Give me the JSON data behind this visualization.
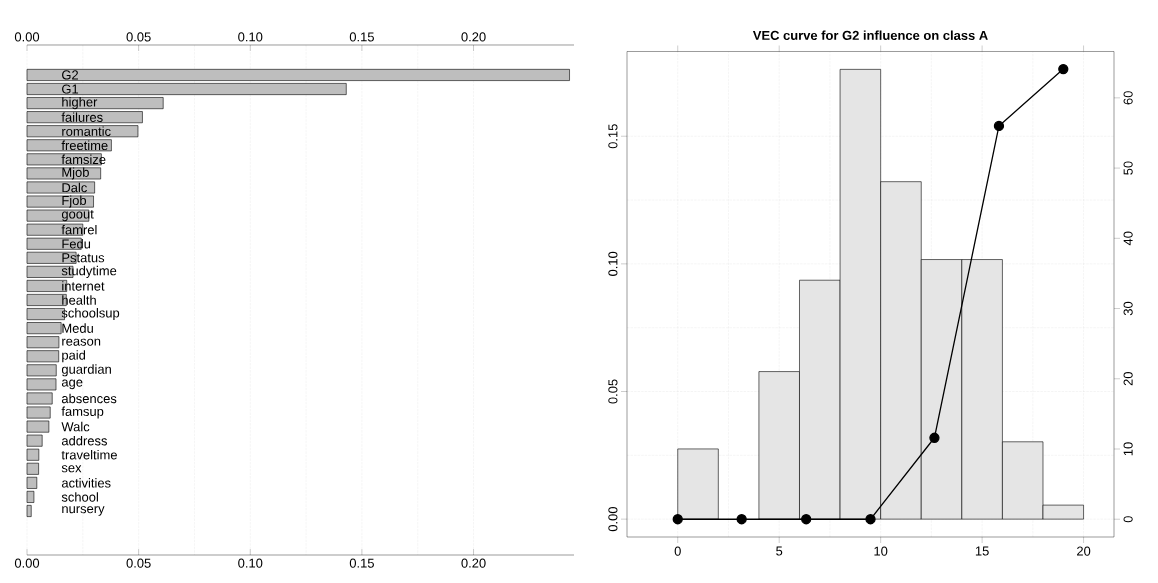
{
  "chart_data": [
    {
      "type": "bar",
      "orientation": "horizontal",
      "color": "#bebebe",
      "grid": true,
      "categories": [
        "G2",
        "G1",
        "higher",
        "failures",
        "romantic",
        "freetime",
        "famsize",
        "Mjob",
        "Dalc",
        "Fjob",
        "goout",
        "famrel",
        "Fedu",
        "Pstatus",
        "studytime",
        "internet",
        "health",
        "schoolsup",
        "Medu",
        "reason",
        "paid",
        "guardian",
        "age",
        "absences",
        "famsup",
        "Walc",
        "address",
        "traveltime",
        "sex",
        "activities",
        "school",
        "nursery"
      ],
      "values": [
        0.243,
        0.143,
        0.061,
        0.0517,
        0.0497,
        0.0378,
        0.0333,
        0.033,
        0.0303,
        0.0298,
        0.0277,
        0.025,
        0.0243,
        0.022,
        0.0206,
        0.0178,
        0.0176,
        0.0168,
        0.0153,
        0.0143,
        0.0142,
        0.0131,
        0.013,
        0.0113,
        0.0104,
        0.0098,
        0.0068,
        0.0053,
        0.0052,
        0.0044,
        0.0031,
        0.0019
      ],
      "xlim": [
        0,
        0.245
      ],
      "xticks": [
        {
          "value": 0,
          "label": "0.00"
        },
        {
          "value": 0.05,
          "label": "0.05"
        },
        {
          "value": 0.1,
          "label": "0.10"
        },
        {
          "value": 0.15,
          "label": "0.15"
        },
        {
          "value": 0.2,
          "label": "0.20"
        }
      ],
      "x2lim": [
        0,
        0.245
      ],
      "x2ticks": [
        {
          "value": 0,
          "label": "0.00"
        },
        {
          "value": 0.05,
          "label": "0.05"
        },
        {
          "value": 0.1,
          "label": "0.10"
        },
        {
          "value": 0.15,
          "label": "0.15"
        },
        {
          "value": 0.2,
          "label": "0.20"
        }
      ]
    },
    {
      "type": "histogram",
      "title": "VEC curve for G2 influence on class A",
      "grid": true,
      "bins": [
        0,
        2,
        4,
        6,
        8,
        10,
        12,
        14,
        16,
        18,
        20
      ],
      "series": [
        {
          "type": "histogram",
          "color": "#e5e5e5",
          "values": [
            0.0275,
            0,
            0.0578,
            0.0936,
            0.1762,
            0.1322,
            0.1017,
            0.1017,
            0.0303,
            0.0055
          ]
        },
        {
          "type": "line",
          "axis": "y2",
          "color": "#000000",
          "marker": "circle",
          "line_style": "solid",
          "x": [
            0,
            3.15,
            6.33,
            9.5,
            12.65,
            15.83,
            19.0
          ],
          "values": [
            0,
            0,
            0,
            0,
            11.6,
            56.0,
            64.1
          ]
        }
      ],
      "xlim": [
        -2.5,
        21.5
      ],
      "xticks": [
        0,
        5,
        10,
        15,
        20
      ],
      "ylim": [
        -0.007,
        0.1832
      ],
      "yticks": [
        {
          "value": 0,
          "label": "0.00"
        },
        {
          "value": 0.05,
          "label": "0.05"
        },
        {
          "value": 0.1,
          "label": "0.10"
        },
        {
          "value": 0.15,
          "label": "0.15"
        }
      ],
      "y2lim": [
        -2.53,
        66.6
      ],
      "y2ticks": [
        0,
        10,
        20,
        30,
        40,
        50,
        60
      ]
    }
  ]
}
